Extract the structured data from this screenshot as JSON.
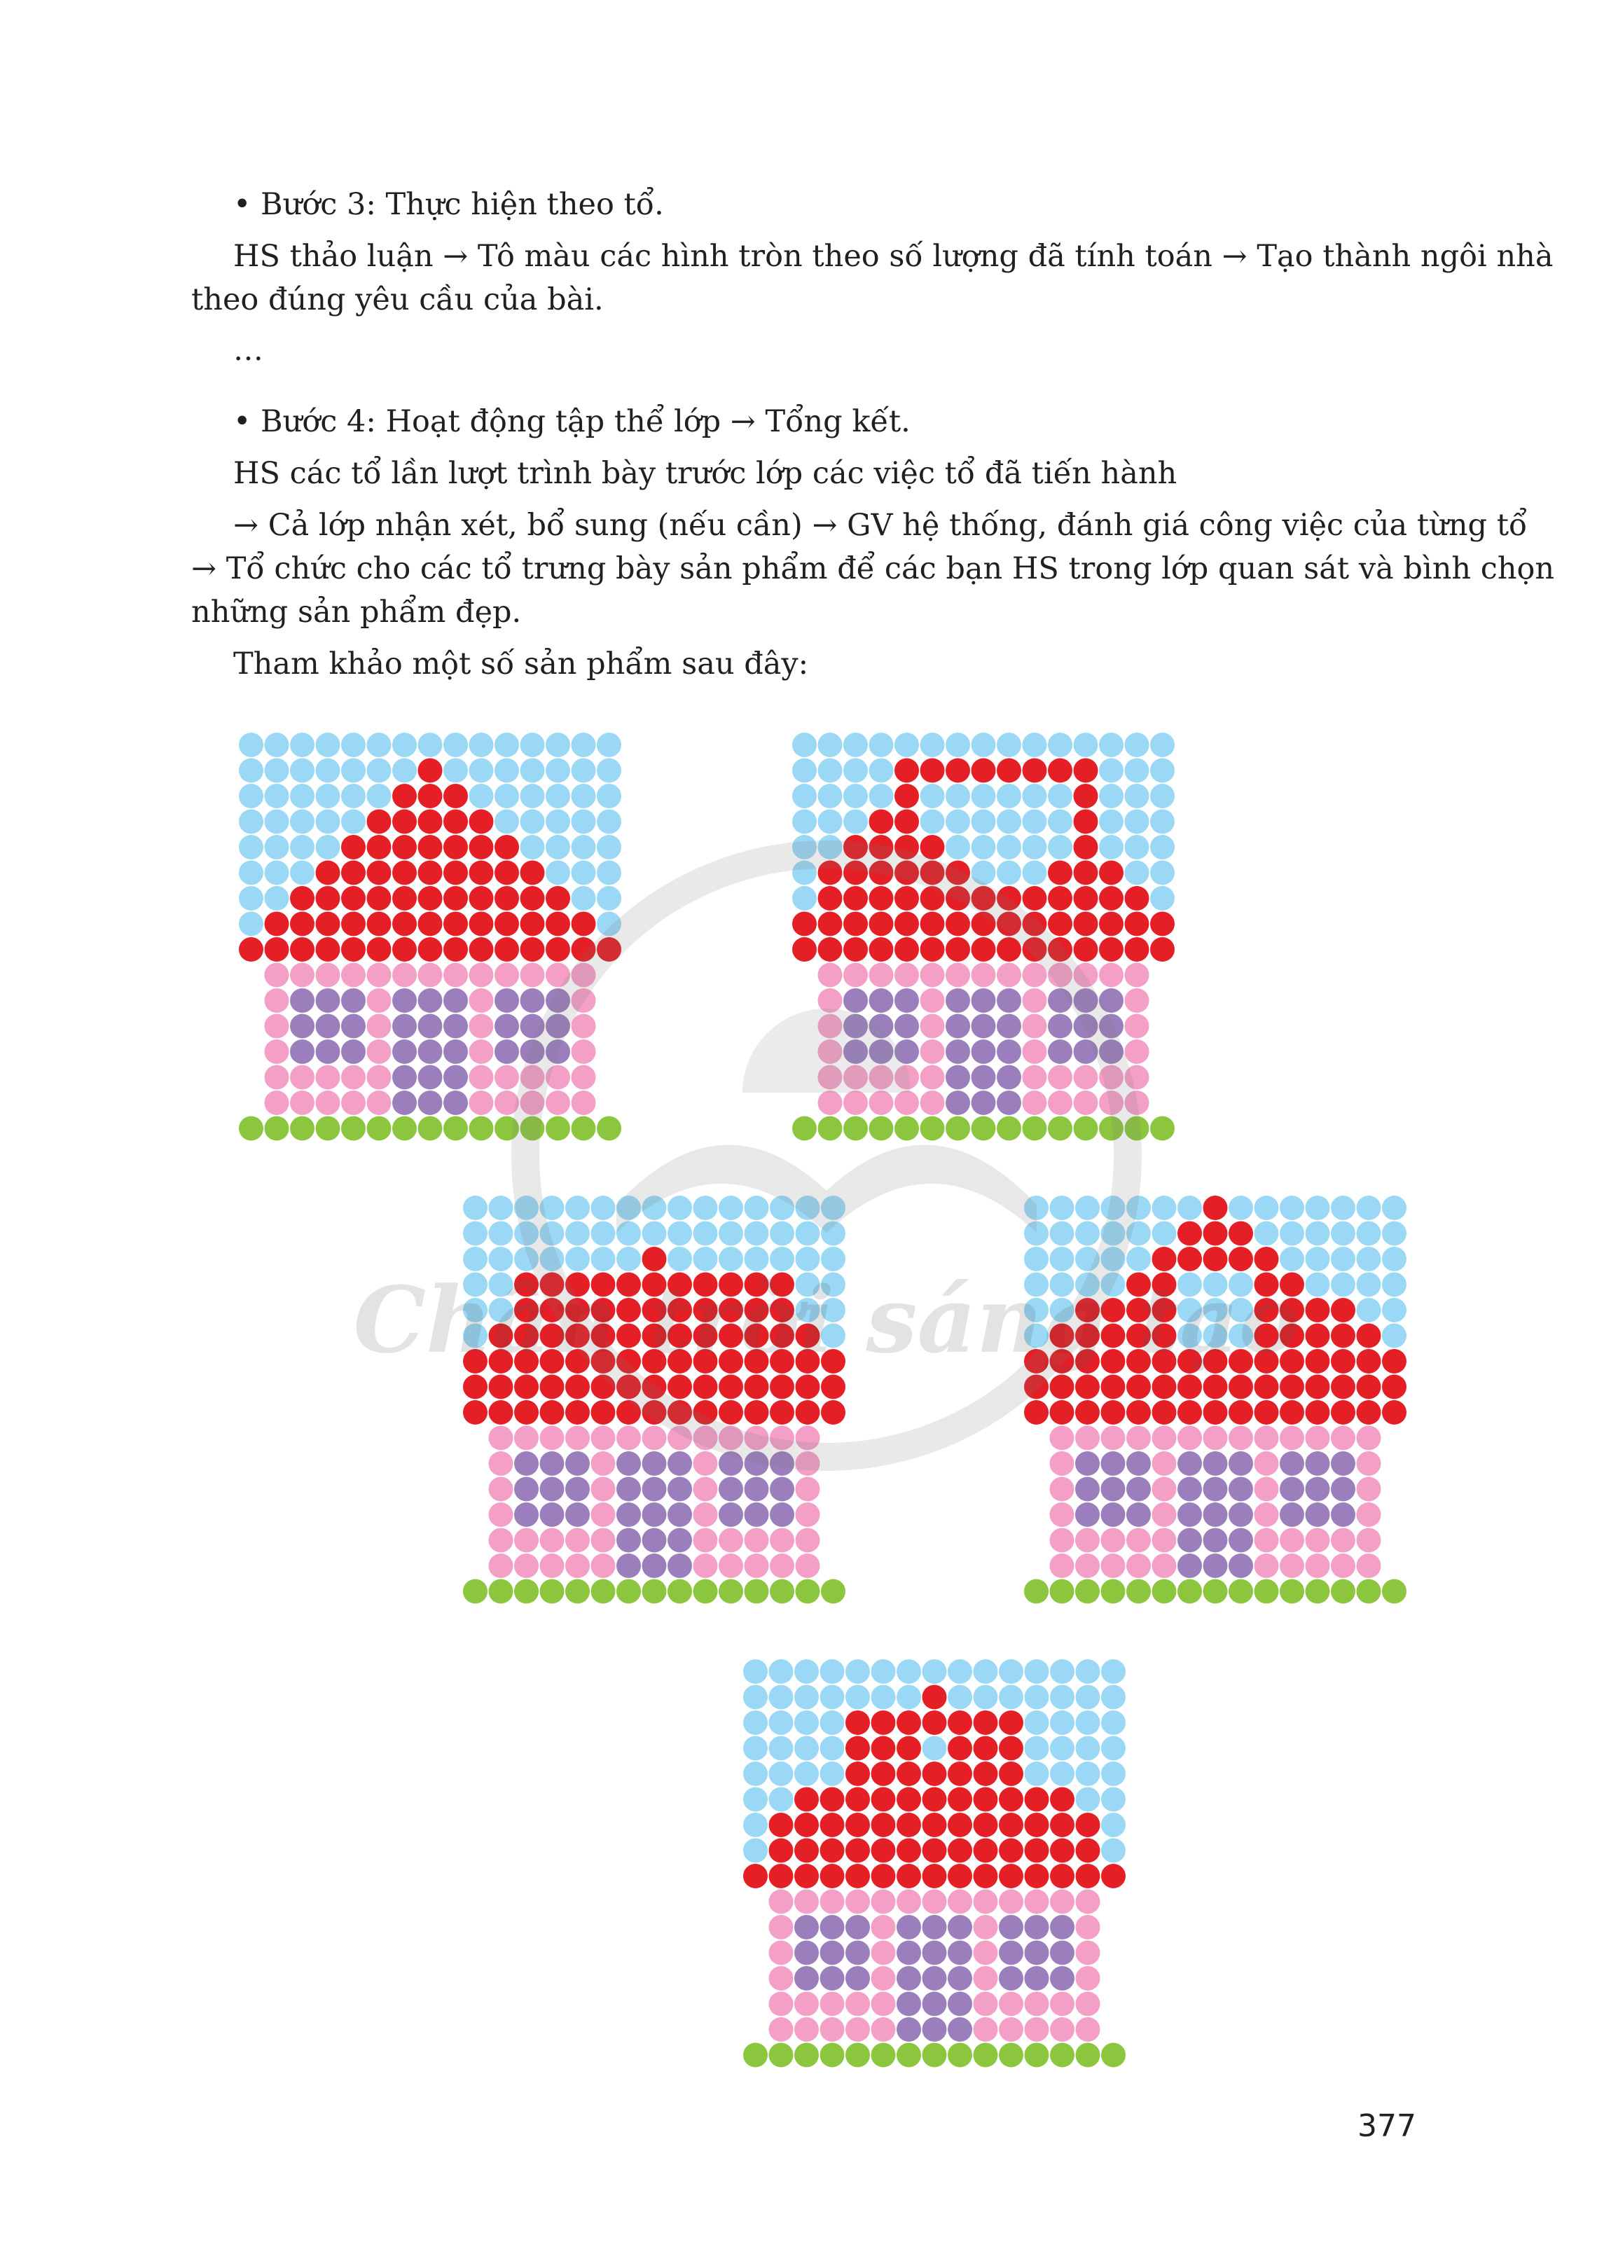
{
  "body": {
    "step3_title": "• Bước 3: Thực hiện theo tổ.",
    "step3_line1": "HS thảo luận → Tô màu các hình tròn theo số lượng đã tính toán → Tạo thành ngôi nhà",
    "step3_line2": "theo đúng yêu cầu của bài.",
    "ellipsis": "…",
    "step4_title": "• Bước 4: Hoạt động tập thể lớp → Tổng kết.",
    "step4_line1": "HS các tổ lần lượt trình bày trước lớp các việc tổ đã tiến hành",
    "step4_line2": "→ Cả lớp nhận xét, bổ sung (nếu cần) → GV hệ thống, đánh giá công việc của từng tổ",
    "step4_line3": "→ Tổ chức cho các tổ trưng bày sản phẩm để các bạn HS trong lớp quan sát và bình chọn",
    "step4_line4": "những sản phẩm đẹp.",
    "reference_intro": "Tham khảo một số sản phẩm sau đây:"
  },
  "watermark": {
    "text": "Chân trời sáng tạo"
  },
  "page_number": "377",
  "colors": {
    "sky": "#9ad8f5",
    "roof": "#e41f26",
    "wall": "#f39fc6",
    "window": "#9b7fbd",
    "grass": "#8cc63e",
    "text": "#231f20"
  },
  "figures": [
    {
      "name": "house-1",
      "grid": [
        "SSSSSSSSSSSSSSS",
        "SSSSSSSRSSSSSSS",
        "SSSSSSRRRSSSSSS",
        "SSSSSRRRRRSSSSS",
        "SSSSRRRRRRRSSSS",
        "SSSRRRRRRRRRSSS",
        "SSRRRRRRRRRRRSS",
        "SRRRRRRRRRRRRRS",
        "RRRRRRRRRRRRRRR",
        ".PPPPPPPPPPPPP.",
        ".PWWWPWWWPWWWP.",
        ".PWWWPWWWPWWWP.",
        ".PWWWPWWWPWWWP.",
        ".PPPPPWWWPPPPP.",
        ".PPPPPWWWPPPPP.",
        "GGGGGGGGGGGGGGG"
      ]
    },
    {
      "name": "house-2",
      "grid": [
        "SSSSSSSSSSSSSSS",
        "SSSSRRRRRRRRSSS",
        "SSSSRSSSSSSRSSS",
        "SSSRRSSSSSSRSSS",
        "SSRRRRSSSSSRSSS",
        "SRRRRRRSSSRRRSS",
        "SRRRRRRRRRRRRRS",
        "RRRRRRRRRRRRRRR",
        "RRRRRRRRRRRRRRR",
        ".PPPPPPPPPPPPP.",
        ".PWWWPWWWPWWWP.",
        ".PWWWPWWWPWWWP.",
        ".PWWWPWWWPWWWP.",
        ".PPPPPWWWPPPPP.",
        ".PPPPPWWWPPPPP.",
        "GGGGGGGGGGGGGGG"
      ]
    },
    {
      "name": "house-3",
      "grid": [
        "SSSSSSSSSSSSSSS",
        "SSSSSSSSSSSSSSS",
        "SSSSSSSRSSSSSSS",
        "SSRRRRRRRRRRRSS",
        "SSRRRRRRRRRRRSS",
        "SRRRRRRRRRRRRRS",
        "RRRRRRRRRRRRRRR",
        "RRRRRRRRRRRRRRR",
        "RRRRRRRRRRRRRRR",
        ".PPPPPPPPPPPPP.",
        ".PWWWPWWWPWWWP.",
        ".PWWWPWWWPWWWP.",
        ".PWWWPWWWPWWWP.",
        ".PPPPPWWWPPPPP.",
        ".PPPPPWWWPPPPP.",
        "GGGGGGGGGGGGGGG"
      ]
    },
    {
      "name": "house-4",
      "grid": [
        "SSSSSSSRSSSSSSS",
        "SSSSSSRRRSSSSSS",
        "SSSSSRRRRRSSSSS",
        "SSSSRRSSSRRSSSS",
        "SSRRRRSSSRRRRSS",
        "SRRRRRSSSRRRRRS",
        "RRRRRRRRRRRRRRR",
        "RRRRRRRRRRRRRRR",
        "RRRRRRRRRRRRRRR",
        ".PPPPPPPPPPPPP.",
        ".PWWWPWWWPWWWP.",
        ".PWWWPWWWPWWWP.",
        ".PWWWPWWWPWWWP.",
        ".PPPPPWWWPPPPP.",
        ".PPPPPWWWPPPPP.",
        "GGGGGGGGGGGGGGG"
      ]
    },
    {
      "name": "house-5",
      "grid": [
        "SSSSSSSSSSSSSSS",
        "SSSSSSSRSSSSSSS",
        "SSSSRRRRRRRSSSS",
        "SSSSRRRSRRRSSSS",
        "SSSSRRRRRRRSSSS",
        "SSRRRRRRRRRRRSS",
        "SRRRRRRRRRRRRRS",
        "SRRRRRRRRRRRRRS",
        "RRRRRRRRRRRRRRR",
        ".PPPPPPPPPPPPP.",
        ".PWWWPWWWPWWWP.",
        ".PWWWPWWWPWWWP.",
        ".PWWWPWWWPWWWP.",
        ".PPPPPWWWPPPPP.",
        ".PPPPPWWWPPPPP.",
        "GGGGGGGGGGGGGGG"
      ]
    }
  ]
}
